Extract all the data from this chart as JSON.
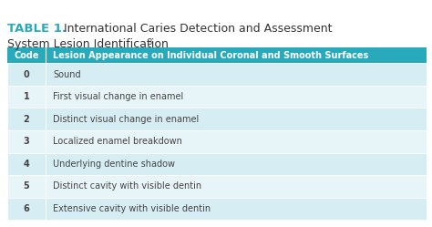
{
  "title_bold": "TABLE 1.",
  "title_line1_regular": " International Caries Detection and Assessment",
  "title_line2": "System Lesion Identification",
  "title_superscript": "3",
  "header_col1": "Code",
  "header_col2": "Lesion Appearance on Individual Coronal and Smooth Surfaces",
  "header_bg": "#29AABB",
  "header_text_color": "#ffffff",
  "rows": [
    [
      "0",
      "Sound"
    ],
    [
      "1",
      "First visual change in enamel"
    ],
    [
      "2",
      "Distinct visual change in enamel"
    ],
    [
      "3",
      "Localized enamel breakdown"
    ],
    [
      "4",
      "Underlying dentine shadow"
    ],
    [
      "5",
      "Distinct cavity with visible dentin"
    ],
    [
      "6",
      "Extensive cavity with visible dentin"
    ]
  ],
  "row_bg_even": "#d6edf3",
  "row_bg_odd": "#e8f5f8",
  "row_text_color": "#444444",
  "title_color": "#333333",
  "title_bold_color": "#29AABB",
  "fig_bg": "#ffffff",
  "header_fontsize": 7.0,
  "row_fontsize": 7.0,
  "title_fontsize": 9.0,
  "title_bold_fontsize": 9.5
}
